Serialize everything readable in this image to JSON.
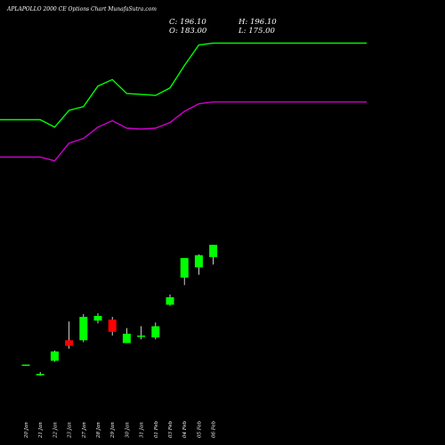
{
  "header": {
    "title": "APLAPOLLO 2000  CE Options  Chart MunafaSutra.com",
    "close_label": "C: 196.10",
    "high_label": "H: 196.10",
    "open_label": "O: 183.00",
    "low_label": "L: 175.00"
  },
  "colors": {
    "background": "#000000",
    "bullish": "#00ff00",
    "bearish": "#ff0000",
    "upper_band": "#00ff00",
    "lower_band": "#cc00cc",
    "wick": "#ffffff"
  },
  "chart_data": {
    "type": "candlestick",
    "dates": [
      "20 Jan",
      "21 Jan",
      "22 Jan",
      "23 Jan",
      "27 Jan",
      "28 Jan",
      "29 Jan",
      "30 Jan",
      "31 Jan",
      "01 Feb",
      "03 Feb",
      "04 Feb",
      "05 Feb",
      "06 Feb"
    ],
    "ohlc": [
      {
        "date": "20 Jan",
        "open": 68.0,
        "high": 68.0,
        "low": 68.0,
        "close": 68.0,
        "dir": "up"
      },
      {
        "date": "21 Jan",
        "open": 56.5,
        "high": 60.0,
        "low": 56.0,
        "close": 58.0,
        "dir": "up"
      },
      {
        "date": "22 Jan",
        "open": 72.0,
        "high": 83.0,
        "low": 71.0,
        "close": 82.0,
        "dir": "up"
      },
      {
        "date": "23 Jan",
        "open": 88.0,
        "high": 114.0,
        "low": 85.0,
        "close": 94.0,
        "dir": "down"
      },
      {
        "date": "27 Jan",
        "open": 94.0,
        "high": 122.0,
        "low": 92.0,
        "close": 119.0,
        "dir": "up"
      },
      {
        "date": "28 Jan",
        "open": 115.0,
        "high": 123.0,
        "low": 112.0,
        "close": 120.0,
        "dir": "up"
      },
      {
        "date": "29 Jan",
        "open": 116.0,
        "high": 119.0,
        "low": 99.0,
        "close": 103.0,
        "dir": "down"
      },
      {
        "date": "30 Jan",
        "open": 91.0,
        "high": 107.0,
        "low": 91.0,
        "close": 101.0,
        "dir": "up"
      },
      {
        "date": "31 Jan",
        "open": 98.0,
        "high": 109.0,
        "low": 95.0,
        "close": 99.0,
        "dir": "up"
      },
      {
        "date": "01 Feb",
        "open": 97.0,
        "high": 113.0,
        "low": 95.0,
        "close": 109.0,
        "dir": "up"
      },
      {
        "date": "03 Feb",
        "open": 132.0,
        "high": 143.0,
        "low": 131.0,
        "close": 140.0,
        "dir": "up"
      },
      {
        "date": "04 Feb",
        "open": 161.0,
        "high": 182.0,
        "low": 153.0,
        "close": 182.0,
        "dir": "up"
      },
      {
        "date": "05 Feb",
        "open": 172.0,
        "high": 186.0,
        "low": 164.0,
        "close": 185.0,
        "dir": "up"
      },
      {
        "date": "06 Feb",
        "open": 183.0,
        "high": 196.1,
        "low": 175.0,
        "close": 196.1,
        "dir": "up"
      }
    ],
    "upper_band": [
      330,
      330,
      322,
      340,
      344,
      366,
      373,
      358,
      357,
      356,
      364,
      388,
      410,
      412
    ],
    "lower_band": [
      290,
      290,
      286,
      305,
      310,
      322,
      329,
      321,
      320,
      321,
      327,
      339,
      347,
      349
    ],
    "ylim": [
      20,
      420
    ]
  }
}
